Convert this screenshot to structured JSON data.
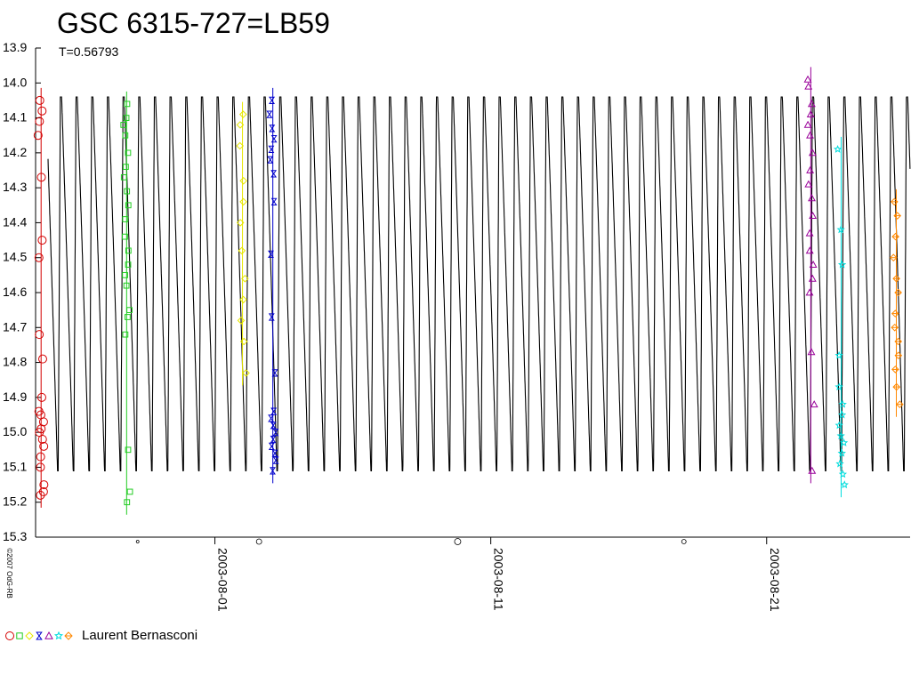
{
  "chart_data": {
    "type": "scatter",
    "title": "GSC 6315-727=LB59",
    "subtitle": "T=0.56793",
    "copyright": "©2007 OdG-RB",
    "ylim": [
      15.3,
      13.9
    ],
    "y_ticks": [
      "13.9",
      "14.0",
      "14.1",
      "14.2",
      "14.3",
      "14.4",
      "14.5",
      "14.6",
      "14.7",
      "14.8",
      "14.9",
      "15.0",
      "15.1",
      "15.2",
      "15.3"
    ],
    "x_ticks": [
      "2003-08-01",
      "2003-08-11",
      "2003-08-21"
    ],
    "x_ticks_jd": [
      52852.5,
      52862.5,
      52872.5
    ],
    "xlim_jd": [
      52846.0,
      52877.7
    ],
    "light_curve": {
      "period_days": 0.56793,
      "max_mag": 14.04,
      "min_mag": 15.11,
      "epoch_jd": 52846.33
    },
    "moon_phase_jd": [
      52849.7,
      52854.1,
      52861.3,
      52869.5
    ],
    "legend": {
      "symbols": [
        "circle",
        "square",
        "diamond",
        "bowtie",
        "triangle",
        "star",
        "diamond-cross"
      ],
      "observer": "Laurent Bernasconi"
    },
    "series": [
      {
        "color": "#d40000",
        "marker": "circle",
        "jd": 52846.2,
        "mags": [
          14.05,
          14.08,
          14.11,
          14.15,
          14.27,
          14.45,
          14.5,
          14.72,
          14.79,
          14.9,
          14.94,
          14.95,
          14.97,
          14.99,
          15.0,
          15.02,
          15.04,
          15.07,
          15.1,
          15.15,
          15.17,
          15.18
        ]
      },
      {
        "color": "#22cc22",
        "marker": "square",
        "jd": 52849.3,
        "mags": [
          14.06,
          14.1,
          14.12,
          14.15,
          14.2,
          14.24,
          14.27,
          14.31,
          14.35,
          14.39,
          14.44,
          14.48,
          14.52,
          14.55,
          14.58,
          14.65,
          14.67,
          14.72,
          15.05,
          15.17,
          15.2
        ]
      },
      {
        "color": "#e6e600",
        "marker": "diamond",
        "jd": 52853.5,
        "mags": [
          14.09,
          14.12,
          14.18,
          14.28,
          14.34,
          14.4,
          14.48,
          14.56,
          14.62,
          14.68,
          14.74,
          14.83
        ]
      },
      {
        "color": "#0000cc",
        "marker": "bowtie",
        "jd": 52854.6,
        "mags": [
          14.05,
          14.09,
          14.13,
          14.16,
          14.19,
          14.22,
          14.26,
          14.34,
          14.49,
          14.67,
          14.83,
          14.94,
          14.96,
          14.98,
          15.0,
          15.02,
          15.04,
          15.06,
          15.08,
          15.11
        ]
      },
      {
        "color": "#990099",
        "marker": "triangle",
        "jd": 52874.1,
        "mags": [
          13.99,
          14.01,
          14.06,
          14.09,
          14.12,
          14.15,
          14.2,
          14.25,
          14.29,
          14.33,
          14.38,
          14.43,
          14.48,
          14.52,
          14.56,
          14.6,
          14.77,
          14.92,
          15.11
        ]
      },
      {
        "color": "#00dddd",
        "marker": "star",
        "jd": 52875.2,
        "mags": [
          14.19,
          14.42,
          14.52,
          14.78,
          14.87,
          14.92,
          14.95,
          14.98,
          15.01,
          15.03,
          15.06,
          15.09,
          15.12,
          15.15
        ]
      },
      {
        "color": "#ff8800",
        "marker": "diamond-cross",
        "jd": 52877.2,
        "mags": [
          14.34,
          14.38,
          14.44,
          14.5,
          14.56,
          14.6,
          14.66,
          14.7,
          14.74,
          14.78,
          14.82,
          14.87,
          14.92
        ]
      }
    ]
  }
}
